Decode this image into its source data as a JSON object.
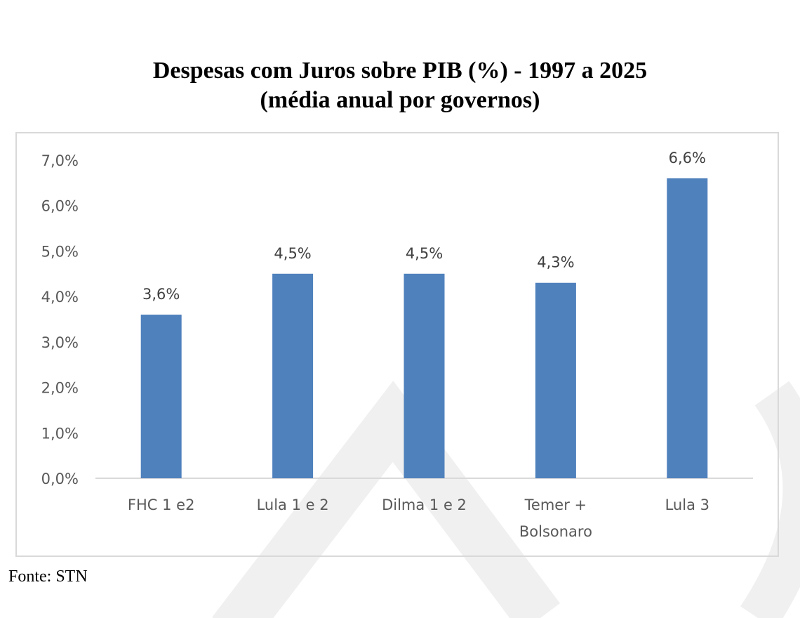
{
  "title_line1": "Despesas com Juros sobre PIB (%) - 1997 a 2025",
  "title_line2": "(média anual por governos)",
  "source": "Fonte: STN",
  "chart_data": {
    "type": "bar",
    "title": "Despesas com Juros sobre PIB (%) - 1997 a 2025 (média anual por governos)",
    "categories": [
      [
        "FHC 1 e2"
      ],
      [
        "Lula 1 e 2"
      ],
      [
        "Dilma 1 e 2"
      ],
      [
        "Temer +",
        "Bolsonaro"
      ],
      [
        "Lula 3"
      ]
    ],
    "values": [
      3.6,
      4.5,
      4.5,
      4.3,
      6.6
    ],
    "data_labels": [
      "3,6%",
      "4,5%",
      "4,5%",
      "4,3%",
      "6,6%"
    ],
    "yticks": [
      "0,0%",
      "1,0%",
      "2,0%",
      "3,0%",
      "4,0%",
      "5,0%",
      "6,0%",
      "7,0%"
    ],
    "ylim": [
      0,
      7
    ],
    "grid": false,
    "legend": "none",
    "bar_color": "#4F81BD"
  }
}
